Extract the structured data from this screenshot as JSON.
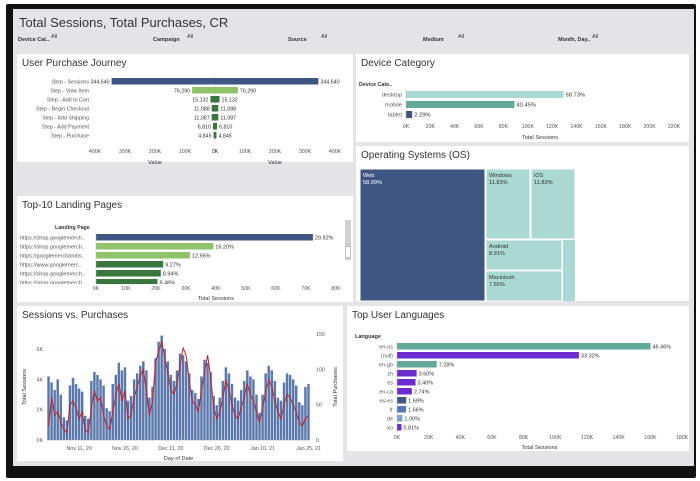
{
  "header": {
    "title": "Total Sessions, Total Purchases, CR",
    "filters": [
      {
        "label": "Device Cat..",
        "value": "All"
      },
      {
        "label": "Campaign",
        "value": "All"
      },
      {
        "label": "Source",
        "value": "All"
      },
      {
        "label": "Medium",
        "value": "All"
      },
      {
        "label": "Month, Day..",
        "value": "All"
      }
    ]
  },
  "panels": {
    "journey": "User Purchase Journey",
    "device": "Device Category",
    "os": "Operating Systems (OS)",
    "landing": "Top-10 Landing Pages",
    "sessions": "Sessions vs. Purchases",
    "languages": "Top User Languages"
  },
  "colors": {
    "navy": "#3f5683",
    "teal": "#62a89b",
    "light_teal": "#aad8d2",
    "green_light": "#8fc36a",
    "green_dark": "#37773c",
    "purple": "#6c2bd0",
    "red_line": "#c21f2b",
    "blue_bar": "#5a78ab"
  },
  "chart_data": [
    {
      "id": "journey",
      "type": "bar",
      "title": "User Purchase Journey",
      "categories": [
        "Step - Sessions",
        "Step - View Item",
        "Step - Add to Cart",
        "Step - Begin Checkout",
        "Step - Add Shipping",
        "Step - Add Payment",
        "Step - Purchase"
      ],
      "values": [
        344640,
        76290,
        15132,
        11088,
        11087,
        6810,
        4845
      ],
      "labels": [
        "344,640",
        "76,290",
        "15,132",
        "11,088",
        "11,087",
        "6,810",
        "4,845"
      ],
      "left_ticks": [
        "400K",
        "300K",
        "200K",
        "100K",
        "0K"
      ],
      "right_ticks": [
        "0K",
        "100K",
        "200K",
        "300K",
        "400K"
      ],
      "xlabel_left": "Value",
      "xlabel_right": "Value",
      "xlim": [
        0,
        400000
      ]
    },
    {
      "id": "device",
      "type": "bar",
      "title": "Device Category",
      "header": "Device Cate..",
      "categories": [
        "desktop",
        "mobile",
        "tablet"
      ],
      "values": [
        129300,
        89000,
        5050
      ],
      "labels": [
        "58.73%",
        "40.45%",
        "2.29%"
      ],
      "ticks": [
        "0K",
        "20K",
        "40K",
        "60K",
        "80K",
        "100K",
        "120K",
        "140K",
        "160K",
        "180K",
        "200K",
        "220K"
      ],
      "xlabel": "Total Sessions",
      "xlim": [
        0,
        220000
      ]
    },
    {
      "id": "os",
      "type": "treemap",
      "title": "Operating Systems (OS)",
      "items": [
        {
          "name": "Web",
          "value": 58.99,
          "label": "58.99%"
        },
        {
          "name": "Windows",
          "value": 11.83,
          "label": "11.83%"
        },
        {
          "name": "iOS",
          "value": 11.83,
          "label": "11.83%"
        },
        {
          "name": "Android",
          "value": 8.91,
          "label": "8.91%"
        },
        {
          "name": "Macintosh",
          "value": 7.65,
          "label": "7.65%"
        }
      ]
    },
    {
      "id": "landing",
      "type": "bar",
      "title": "Top-10 Landing Pages",
      "header": "Landing Page",
      "categories": [
        "https://shop.googlemerch..",
        "https://shop.googlemerch..",
        "https://googlemerchandis..",
        "https://www.googlemerc..",
        "https://shop.googlemerch..",
        "https://shop.googlemerch.."
      ],
      "values": [
        72300,
        39100,
        31300,
        22400,
        21600,
        20500
      ],
      "labels": [
        "29.92%",
        "16.20%",
        "12.96%",
        "9.27%",
        "8.94%",
        "8.48%"
      ],
      "ticks": [
        "0K",
        "10K",
        "20K",
        "30K",
        "40K",
        "50K",
        "60K",
        "70K",
        "80K"
      ],
      "xlabel": "Total Sessions",
      "xlim": [
        0,
        80000
      ]
    },
    {
      "id": "sessions",
      "type": "bar",
      "title": "Sessions vs. Purchases",
      "xlabel": "Day of Date",
      "ylabel_left": "Total Sessions",
      "ylabel_right": "Total Purchases",
      "x_ticks": [
        "Nov 11, 20",
        "Nov 26, 20",
        "Dec 11, 20",
        "Dec 26, 20",
        "Jan 10, 21",
        "Jan 25, 21"
      ],
      "y_ticks_left": [
        "0K",
        "2K",
        "4K",
        "6K"
      ],
      "y_ticks_right": [
        "0",
        "50",
        "100",
        "150"
      ],
      "ylim_left": [
        0,
        7000
      ],
      "ylim_right": [
        0,
        150
      ],
      "start_date": "Nov 1, 20",
      "series": [
        {
          "name": "Total Sessions",
          "kind": "bar",
          "values": [
            4200,
            3800,
            3300,
            4000,
            3000,
            1500,
            1300,
            3600,
            4100,
            3700,
            3400,
            3200,
            1600,
            1400,
            3900,
            4500,
            4300,
            4000,
            3600,
            2100,
            1900,
            3700,
            4300,
            5100,
            4600,
            4800,
            2600,
            2900,
            4000,
            4400,
            4900,
            5200,
            4600,
            2800,
            3500,
            5400,
            6500,
            6900,
            6000,
            5200,
            4300,
            3900,
            4600,
            5700,
            5600,
            5200,
            4400,
            3300,
            3100,
            2700,
            4200,
            5300,
            5100,
            4500,
            2900,
            2300,
            2800,
            3900,
            4800,
            4400,
            3700,
            2800,
            2600,
            3300,
            3900,
            4600,
            4200,
            4000,
            3000,
            1800,
            3000,
            4400,
            4900,
            4600,
            3900,
            2800,
            2600,
            3800,
            4400,
            4300,
            4000,
            3600,
            2500,
            2300,
            3500,
            3700
          ]
        },
        {
          "name": "Total Purchases",
          "kind": "line",
          "values": [
            20,
            60,
            35,
            40,
            25,
            15,
            10,
            50,
            55,
            45,
            30,
            40,
            15,
            10,
            45,
            70,
            55,
            60,
            35,
            20,
            15,
            40,
            65,
            80,
            55,
            70,
            30,
            35,
            60,
            75,
            90,
            100,
            70,
            35,
            55,
            110,
            125,
            140,
            115,
            95,
            70,
            65,
            80,
            105,
            130,
            120,
            85,
            55,
            50,
            40,
            70,
            95,
            120,
            90,
            45,
            30,
            40,
            60,
            85,
            70,
            50,
            35,
            30,
            45,
            60,
            80,
            65,
            55,
            40,
            25,
            45,
            70,
            85,
            75,
            55,
            40,
            30,
            50,
            65,
            60,
            50,
            40,
            25,
            20,
            30,
            35
          ]
        }
      ]
    },
    {
      "id": "languages",
      "type": "bar",
      "title": "Top User Languages",
      "header": "Language",
      "categories": [
        "en-us",
        "(null)",
        "en-gb",
        "zh",
        "es",
        "en-ca",
        "es-es",
        "fr",
        "de",
        "ko"
      ],
      "values": [
        160100,
        114900,
        25100,
        12400,
        11700,
        9400,
        5800,
        5700,
        3400,
        2800
      ],
      "labels": [
        "46.46%",
        "33.32%",
        "7.28%",
        "3.60%",
        "3.40%",
        "2.74%",
        "1.69%",
        "1.66%",
        "1.00%",
        "0.81%"
      ],
      "ticks": [
        "0K",
        "20K",
        "40K",
        "60K",
        "80K",
        "100K",
        "120K",
        "140K",
        "160K",
        "180K"
      ],
      "xlabel": "Total Sessions",
      "xlim": [
        0,
        180000
      ]
    }
  ]
}
